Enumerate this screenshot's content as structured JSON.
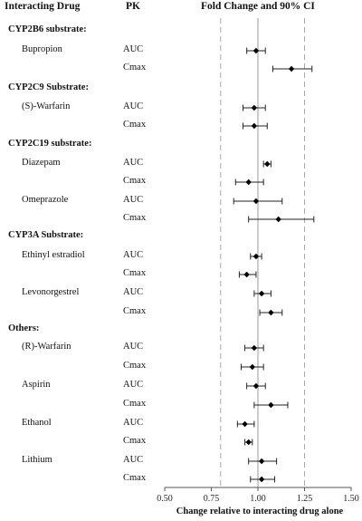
{
  "headers": {
    "drug": "Interacting Drug",
    "pk": "PK",
    "ci": "Fold Change and 90% CI"
  },
  "chart_data": {
    "type": "forest",
    "xlabel": "Change relative to interacting drug alone",
    "xlim": [
      0.5,
      1.5
    ],
    "xticks": [
      "0.50",
      "0.75",
      "1.00",
      "1.25",
      "1.50"
    ],
    "reference_lines": [
      0.8,
      1.0,
      1.25
    ],
    "groups": [
      {
        "name": "CYP2B6 substrate:",
        "drugs": [
          {
            "drug": "Bupropion",
            "rows": [
              {
                "pk": "AUC",
                "est": 0.99,
                "lo": 0.94,
                "hi": 1.04
              },
              {
                "pk": "Cmax",
                "est": 1.18,
                "lo": 1.08,
                "hi": 1.29
              }
            ]
          }
        ]
      },
      {
        "name": "CYP2C9 Substrate:",
        "drugs": [
          {
            "drug": "(S)-Warfarin",
            "rows": [
              {
                "pk": "AUC",
                "est": 0.98,
                "lo": 0.92,
                "hi": 1.04
              },
              {
                "pk": "Cmax",
                "est": 0.98,
                "lo": 0.92,
                "hi": 1.05
              }
            ]
          }
        ]
      },
      {
        "name": "CYP2C19 substrate:",
        "drugs": [
          {
            "drug": "Diazepam",
            "rows": [
              {
                "pk": "AUC",
                "est": 1.05,
                "lo": 1.03,
                "hi": 1.07
              },
              {
                "pk": "Cmax",
                "est": 0.95,
                "lo": 0.88,
                "hi": 1.03
              }
            ]
          },
          {
            "drug": "Omeprazole",
            "rows": [
              {
                "pk": "AUC",
                "est": 0.99,
                "lo": 0.87,
                "hi": 1.13
              },
              {
                "pk": "Cmax",
                "est": 1.11,
                "lo": 0.95,
                "hi": 1.3
              }
            ]
          }
        ]
      },
      {
        "name": "CYP3A Substrate:",
        "drugs": [
          {
            "drug": "Ethinyl estradiol",
            "rows": [
              {
                "pk": "AUC",
                "est": 0.99,
                "lo": 0.96,
                "hi": 1.02
              },
              {
                "pk": "Cmax",
                "est": 0.94,
                "lo": 0.9,
                "hi": 0.99
              }
            ]
          },
          {
            "drug": "Levonorgestrel",
            "rows": [
              {
                "pk": "AUC",
                "est": 1.02,
                "lo": 0.98,
                "hi": 1.07
              },
              {
                "pk": "Cmax",
                "est": 1.07,
                "lo": 1.01,
                "hi": 1.13
              }
            ]
          }
        ]
      },
      {
        "name": "Others:",
        "drugs": [
          {
            "drug": "(R)-Warfarin",
            "rows": [
              {
                "pk": "AUC",
                "est": 0.98,
                "lo": 0.93,
                "hi": 1.03
              },
              {
                "pk": "Cmax",
                "est": 0.97,
                "lo": 0.91,
                "hi": 1.03
              }
            ]
          },
          {
            "drug": "Aspirin",
            "rows": [
              {
                "pk": "AUC",
                "est": 0.99,
                "lo": 0.94,
                "hi": 1.04
              },
              {
                "pk": "Cmax",
                "est": 1.07,
                "lo": 0.98,
                "hi": 1.16
              }
            ]
          },
          {
            "drug": "Ethanol",
            "rows": [
              {
                "pk": "AUC",
                "est": 0.93,
                "lo": 0.89,
                "hi": 0.98
              },
              {
                "pk": "Cmax",
                "est": 0.95,
                "lo": 0.93,
                "hi": 0.97
              }
            ]
          },
          {
            "drug": "Lithium",
            "rows": [
              {
                "pk": "AUC",
                "est": 1.02,
                "lo": 0.95,
                "hi": 1.1
              },
              {
                "pk": "Cmax",
                "est": 1.02,
                "lo": 0.96,
                "hi": 1.09
              }
            ]
          }
        ]
      }
    ]
  }
}
